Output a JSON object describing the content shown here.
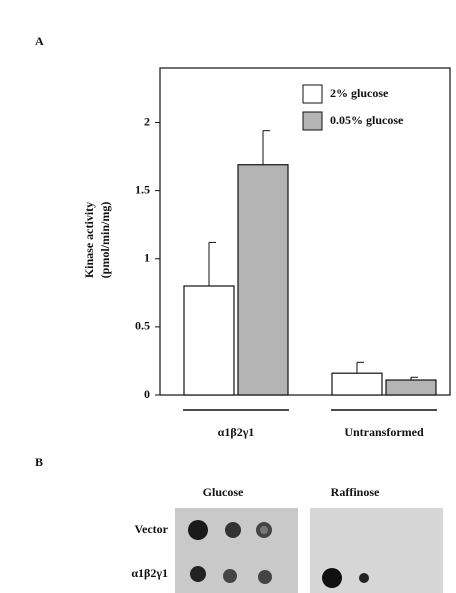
{
  "panel_a_label": "A",
  "chart_data": {
    "type": "bar",
    "ylabel": [
      "Kinase activity",
      "(pmol/min/mg)"
    ],
    "categories": [
      "α1β2γ1",
      "Untransformed"
    ],
    "series": [
      {
        "name": "2% glucose",
        "color": "#ffffff",
        "values": [
          0.8,
          0.16
        ],
        "errors": [
          0.32,
          0.08
        ]
      },
      {
        "name": "0.05% glucose",
        "color": "#b4b4b4",
        "values": [
          1.69,
          0.11
        ],
        "errors": [
          0.25,
          0.02
        ]
      }
    ],
    "ylim": [
      0,
      2.4
    ],
    "yticks": [
      0,
      0.5,
      1,
      1.5,
      2
    ],
    "legend": "upper right"
  },
  "panel_b": {
    "label": "B",
    "columns": [
      "Glucose",
      "Raffinose"
    ],
    "rows": [
      "Vector",
      "α1β2γ1"
    ]
  }
}
